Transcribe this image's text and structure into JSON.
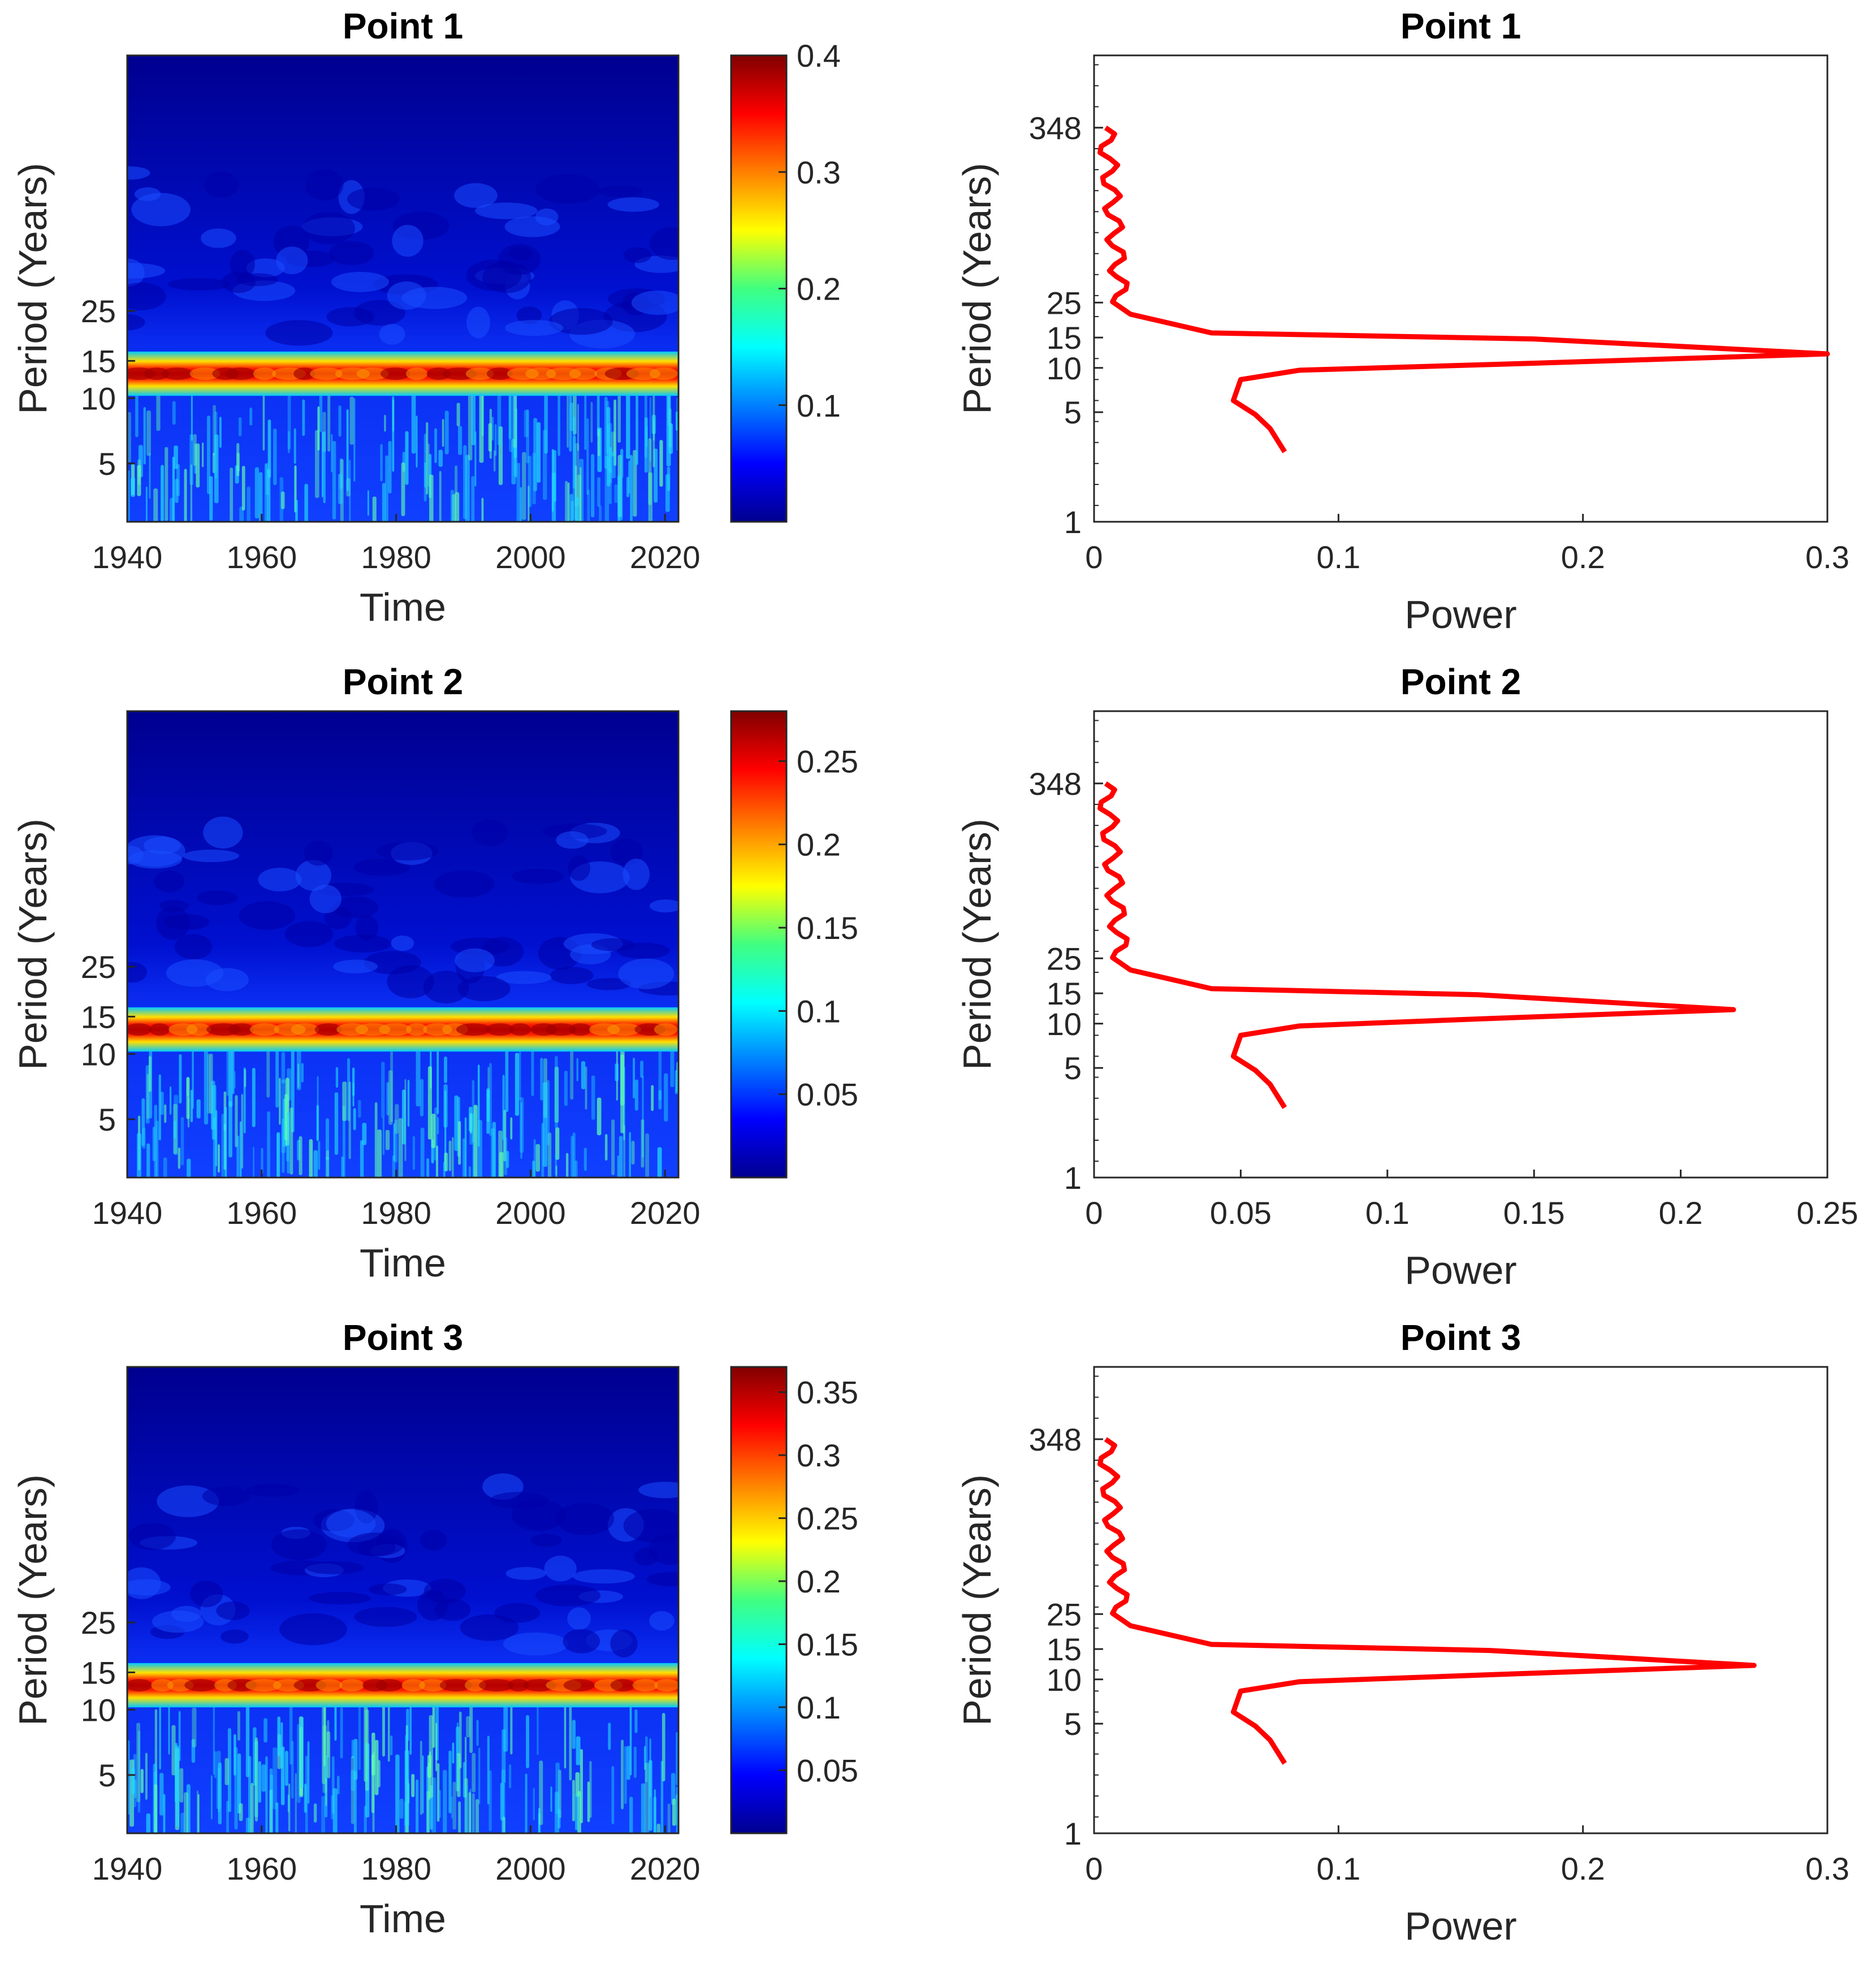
{
  "chart_data": [
    {
      "type": "heatmap",
      "title": "Point 1",
      "xlabel": "Time",
      "ylabel": "Period (Years)",
      "xlim": [
        1940,
        2022
      ],
      "x_ticks": [
        "1940",
        "1960",
        "1980",
        "2000",
        "2020"
      ],
      "y_ticks": [
        "5",
        "10",
        "15",
        "25"
      ],
      "colorbar": {
        "range": [
          0.0,
          0.4
        ],
        "ticks": [
          "0.1",
          "0.2",
          "0.3",
          "0.4"
        ]
      },
      "band": {
        "period_low": 10,
        "period_high": 15,
        "peak_value": 0.4
      },
      "colors": {
        "low": "#00008f",
        "high": "#800000"
      }
    },
    {
      "type": "line",
      "title": "Point 1",
      "xlabel": "Power",
      "ylabel": "Period (Years)",
      "xlim": [
        0,
        0.3
      ],
      "x_ticks": [
        "0",
        "0.1",
        "0.2",
        "0.3"
      ],
      "y_ticks": [
        "1",
        "5",
        "10",
        "15",
        "25",
        "348"
      ],
      "peak": {
        "period": 12,
        "power": 0.3
      },
      "line_color": "#ff0000"
    },
    {
      "type": "heatmap",
      "title": "Point 2",
      "xlabel": "Time",
      "ylabel": "Period (Years)",
      "xlim": [
        1940,
        2022
      ],
      "x_ticks": [
        "1940",
        "1960",
        "1980",
        "2000",
        "2020"
      ],
      "y_ticks": [
        "5",
        "10",
        "15",
        "25"
      ],
      "colorbar": {
        "range": [
          0.0,
          0.28
        ],
        "ticks": [
          "0.05",
          "0.1",
          "0.15",
          "0.2",
          "0.25"
        ]
      },
      "band": {
        "period_low": 10,
        "period_high": 15,
        "peak_value": 0.27
      },
      "colors": {
        "low": "#00008f",
        "high": "#800000"
      }
    },
    {
      "type": "line",
      "title": "Point 2",
      "xlabel": "Power",
      "ylabel": "Period (Years)",
      "xlim": [
        0,
        0.25
      ],
      "x_ticks": [
        "0",
        "0.05",
        "0.1",
        "0.15",
        "0.2",
        "0.25"
      ],
      "y_ticks": [
        "1",
        "5",
        "10",
        "15",
        "25",
        "348"
      ],
      "peak": {
        "period": 12,
        "power": 0.218
      },
      "line_color": "#ff0000"
    },
    {
      "type": "heatmap",
      "title": "Point 3",
      "xlabel": "Time",
      "ylabel": "Period (Years)",
      "xlim": [
        1940,
        2022
      ],
      "x_ticks": [
        "1940",
        "1960",
        "1980",
        "2000",
        "2020"
      ],
      "y_ticks": [
        "5",
        "10",
        "15",
        "25"
      ],
      "colorbar": {
        "range": [
          0.0,
          0.37
        ],
        "ticks": [
          "0.05",
          "0.1",
          "0.15",
          "0.2",
          "0.25",
          "0.3",
          "0.35"
        ]
      },
      "band": {
        "period_low": 10,
        "period_high": 15,
        "peak_value": 0.36
      },
      "colors": {
        "low": "#00008f",
        "high": "#800000"
      }
    },
    {
      "type": "line",
      "title": "Point 3",
      "xlabel": "Power",
      "ylabel": "Period (Years)",
      "xlim": [
        0,
        0.3
      ],
      "x_ticks": [
        "0",
        "0.1",
        "0.2",
        "0.3"
      ],
      "y_ticks": [
        "1",
        "5",
        "10",
        "15",
        "25",
        "348"
      ],
      "peak": {
        "period": 12,
        "power": 0.27
      },
      "line_color": "#ff0000"
    }
  ]
}
